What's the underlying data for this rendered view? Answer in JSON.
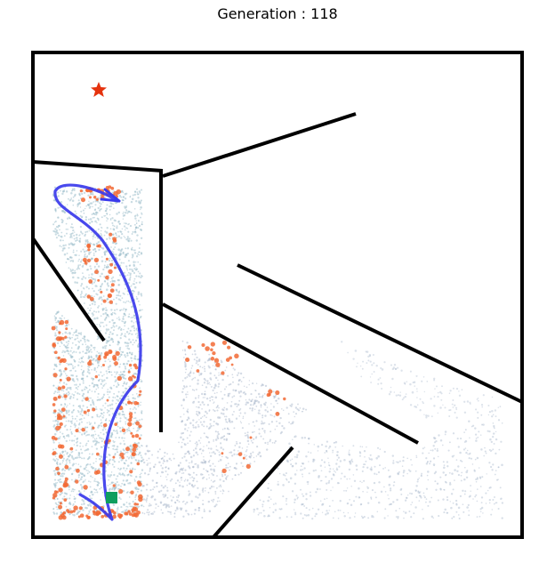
{
  "title": "Generation : 118",
  "colors": {
    "wall": "#000000",
    "samples": "#9fc0cc",
    "samples_dark": "#a9b8cc",
    "highlight_points": "#f26a35",
    "trajectory": "#3a3aec",
    "goal_star": "#e5330e",
    "start_marker": "#0e9e5e"
  },
  "markers": {
    "goal": "star",
    "start": "square"
  }
}
